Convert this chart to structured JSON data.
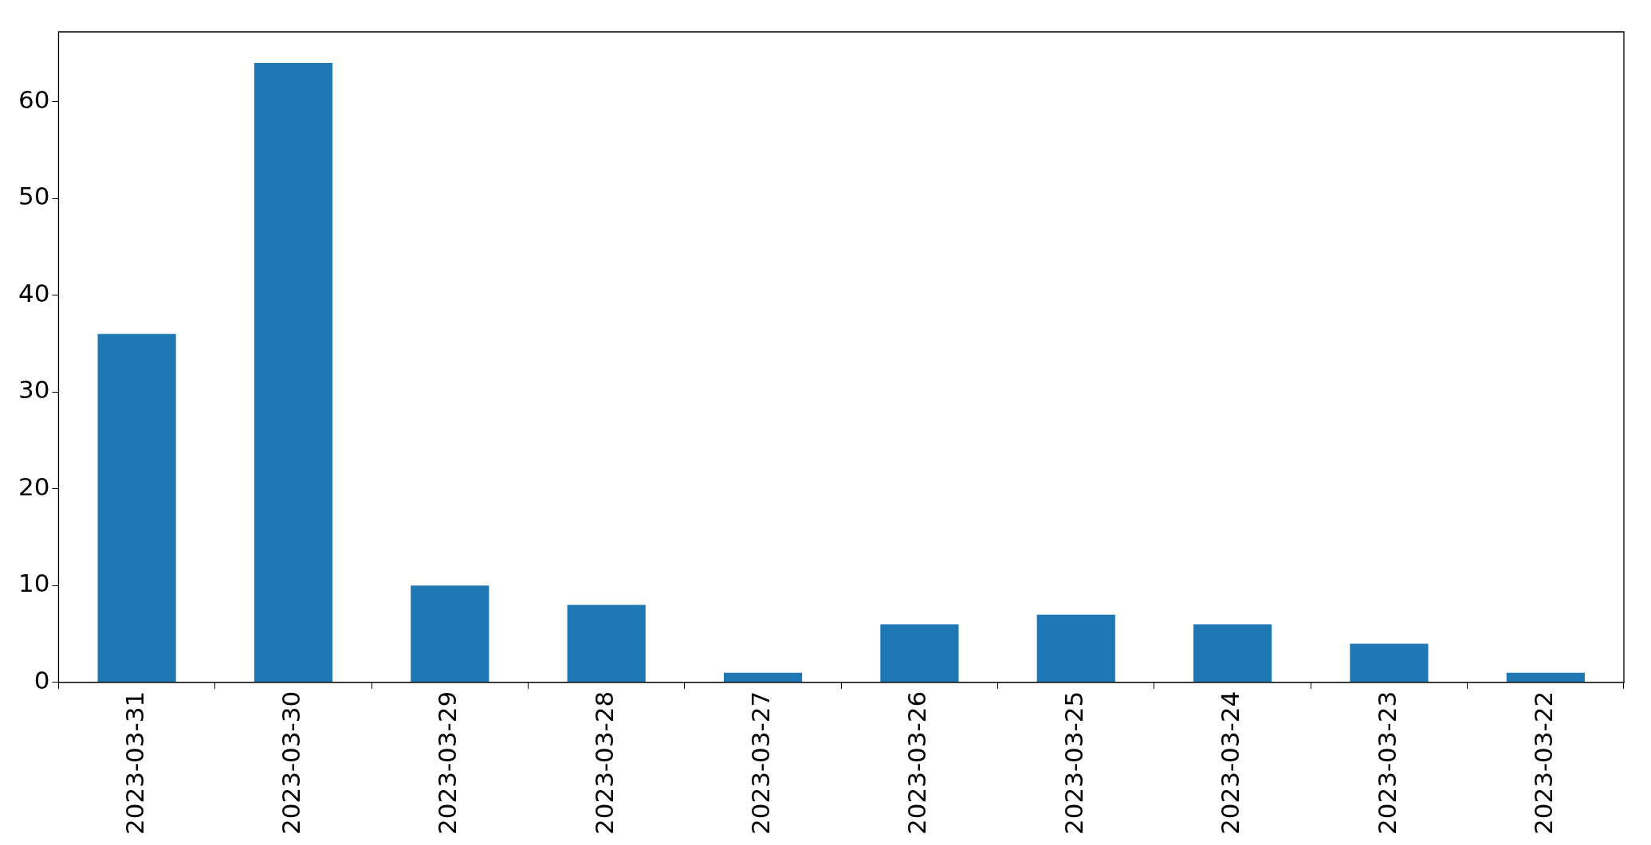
{
  "chart_data": {
    "type": "bar",
    "categories": [
      "2023-03-31",
      "2023-03-30",
      "2023-03-29",
      "2023-03-28",
      "2023-03-27",
      "2023-03-26",
      "2023-03-25",
      "2023-03-24",
      "2023-03-23",
      "2023-03-22"
    ],
    "values": [
      36,
      64,
      10,
      8,
      1,
      6,
      7,
      6,
      4,
      1
    ],
    "color": "#1f77b4",
    "ylim": [
      0,
      67.2
    ],
    "yticks": [
      0,
      10,
      20,
      30,
      40,
      50,
      60
    ],
    "grid": false,
    "legend": false
  }
}
